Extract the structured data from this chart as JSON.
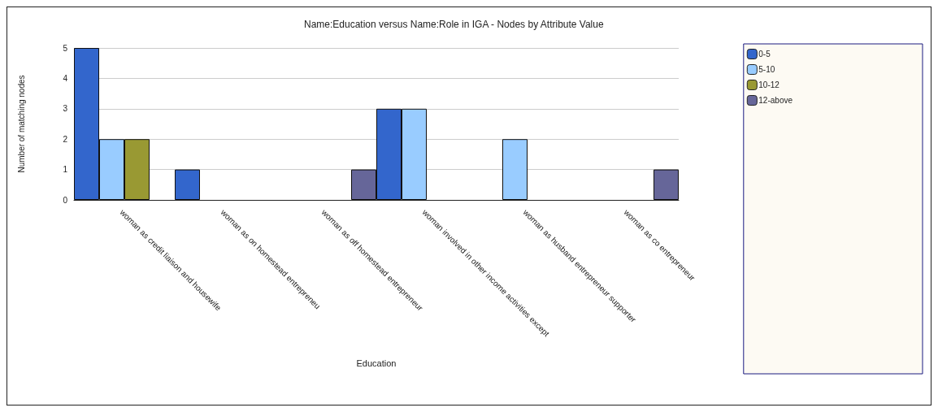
{
  "chart_data": {
    "type": "bar",
    "title": "Name:Education versus Name:Role in IGA - Nodes by Attribute Value",
    "xlabel": "Education",
    "ylabel": "Number of matching nodes",
    "categories": [
      "woman as credit liaison and housewife",
      "woman as on homestead entrepreneu",
      "woman as off homestead entrepreneur",
      "woman involved in other income activities except",
      "woman as husband entrepreneur supporter",
      "woman as co entrepreneur"
    ],
    "series": [
      {
        "name": "0-5",
        "color": "#3366cc",
        "values": [
          5,
          1,
          null,
          3,
          null,
          null
        ]
      },
      {
        "name": "5-10",
        "color": "#99ccff",
        "values": [
          2,
          null,
          null,
          3,
          2,
          null
        ]
      },
      {
        "name": "10-12",
        "color": "#999933",
        "values": [
          2,
          null,
          null,
          null,
          null,
          null
        ]
      },
      {
        "name": "12-above",
        "color": "#666699",
        "values": [
          null,
          null,
          1,
          null,
          null,
          1
        ]
      }
    ],
    "ylim": [
      0,
      5
    ],
    "yticks": [
      0,
      1,
      2,
      3,
      4,
      5
    ],
    "grid": "y",
    "legend": "right"
  }
}
